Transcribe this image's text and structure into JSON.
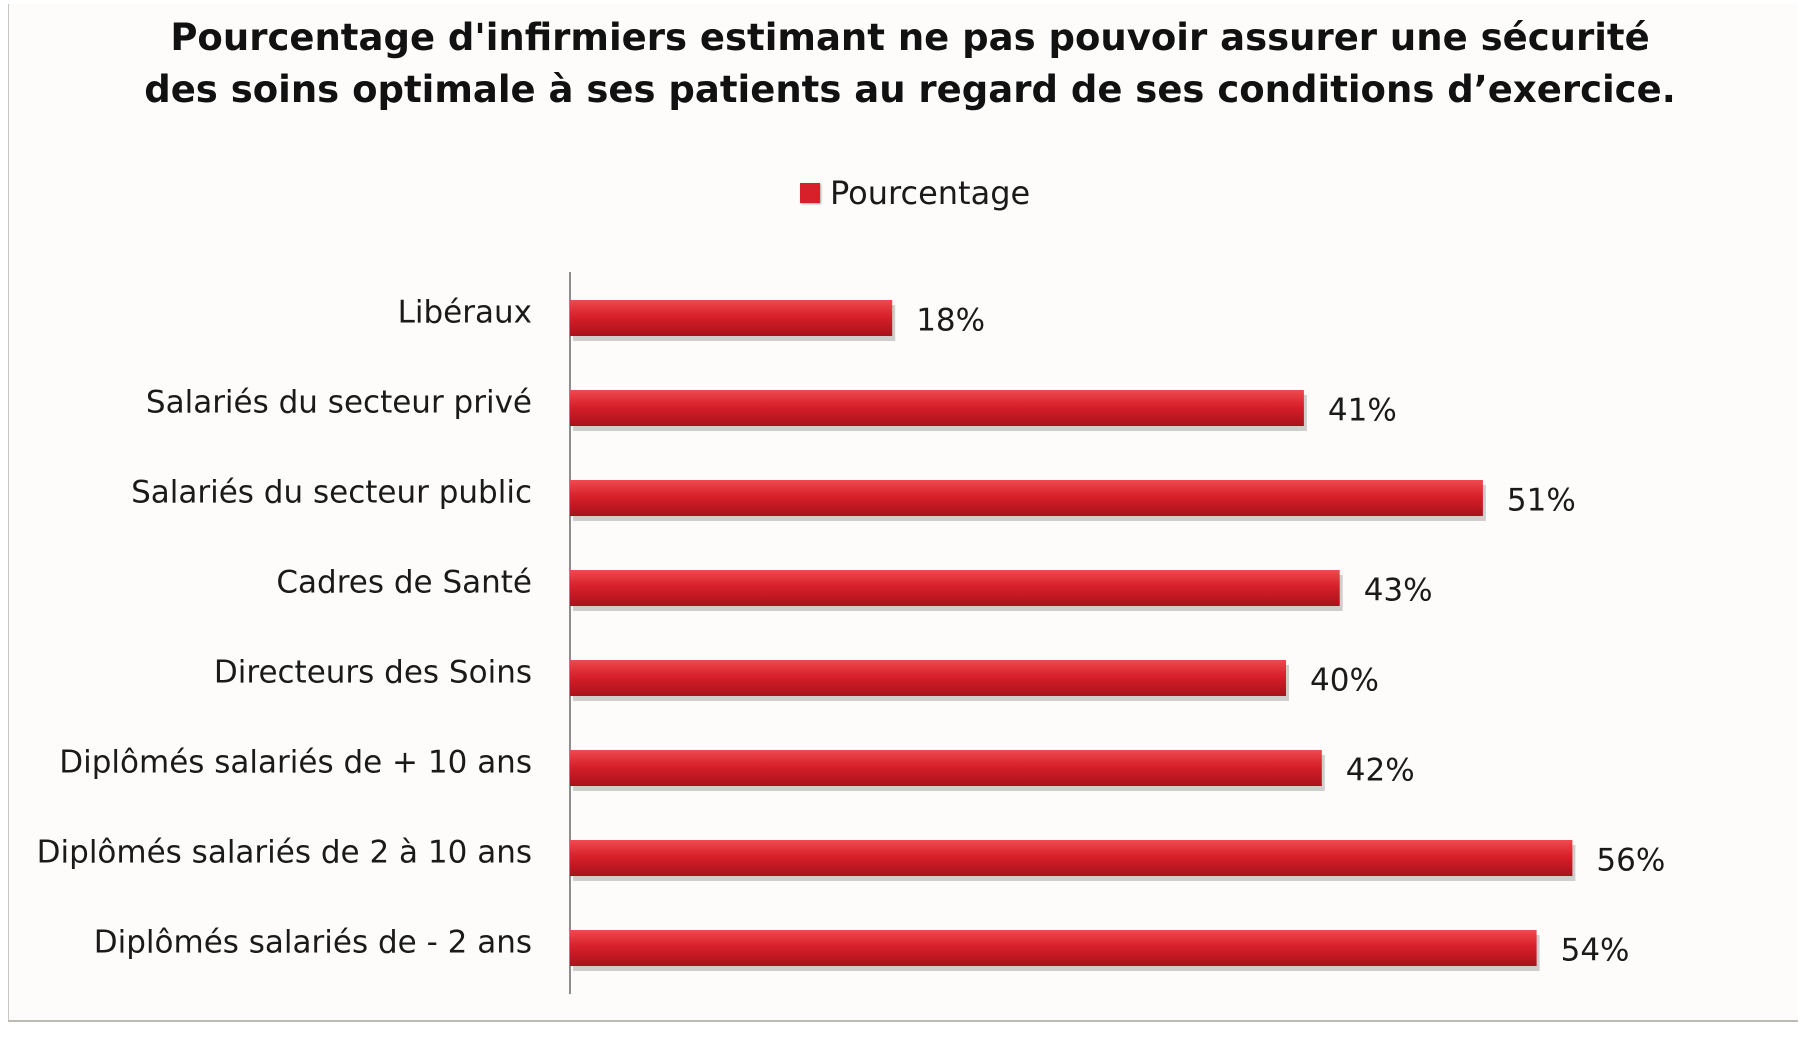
{
  "chart_data": {
    "type": "bar",
    "orientation": "horizontal",
    "title": "Pourcentage d'infirmiers estimant ne pas pouvoir assurer une sécurité des soins optimale à ses patients au regard de ses conditions d’exercice.",
    "title_lines": [
      "Pourcentage d'infirmiers estimant ne pas pouvoir assurer une sécurité",
      "des soins optimale à ses patients au regard de ses conditions d’exercice."
    ],
    "legend": {
      "position": "top",
      "entries": [
        "Pourcentage"
      ]
    },
    "categories": [
      "Libéraux",
      "Salariés du secteur privé",
      "Salariés du secteur public",
      "Cadres de Santé",
      "Directeurs des Soins",
      "Diplômés salariés de + 10 ans",
      "Diplômés salariés de 2 à 10 ans",
      "Diplômés salariés de - 2 ans"
    ],
    "series": [
      {
        "name": "Pourcentage",
        "values": [
          18,
          41,
          51,
          43,
          40,
          42,
          56,
          54
        ],
        "labels": [
          "18%",
          "41%",
          "51%",
          "43%",
          "40%",
          "42%",
          "56%",
          "54%"
        ],
        "color": "#d8202a"
      }
    ],
    "xlim": [
      0,
      56
    ],
    "grid": false,
    "xlabel": "",
    "ylabel": ""
  }
}
